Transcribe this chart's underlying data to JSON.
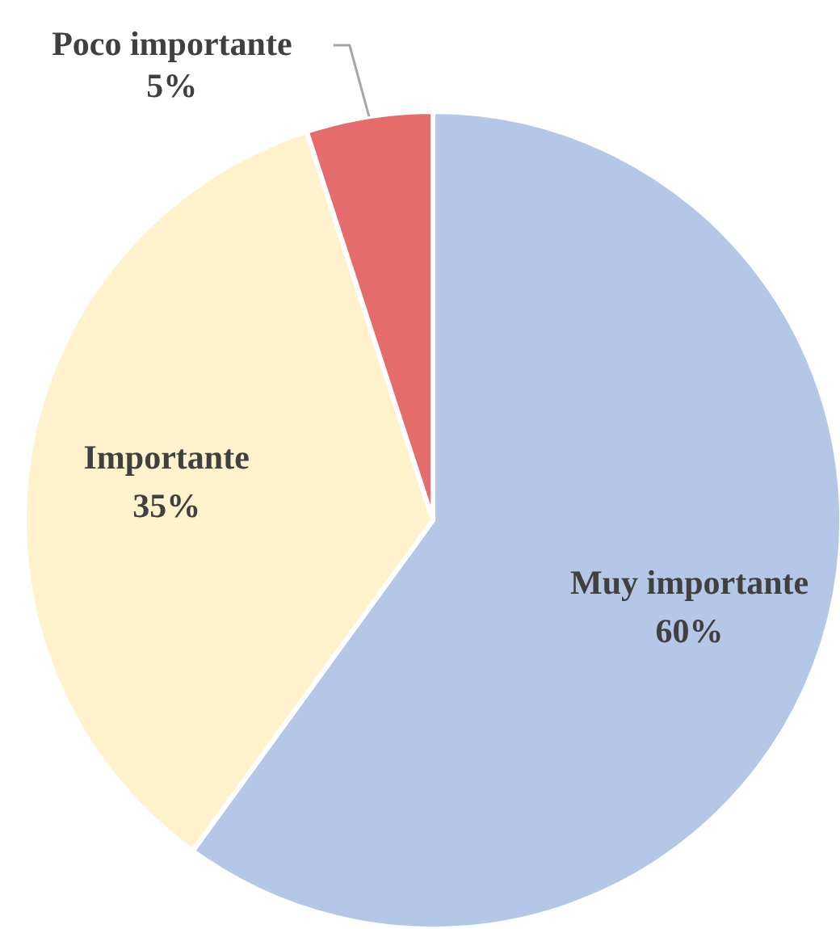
{
  "chart_data": {
    "type": "pie",
    "categories": [
      "Muy importante",
      "Importante",
      "Poco importante"
    ],
    "values": [
      60,
      35,
      5
    ],
    "value_labels": [
      "60%",
      "35%",
      "5%"
    ],
    "colors": [
      "#b4c7e7",
      "#fff2cc",
      "#e46c6c"
    ],
    "legend": false
  }
}
